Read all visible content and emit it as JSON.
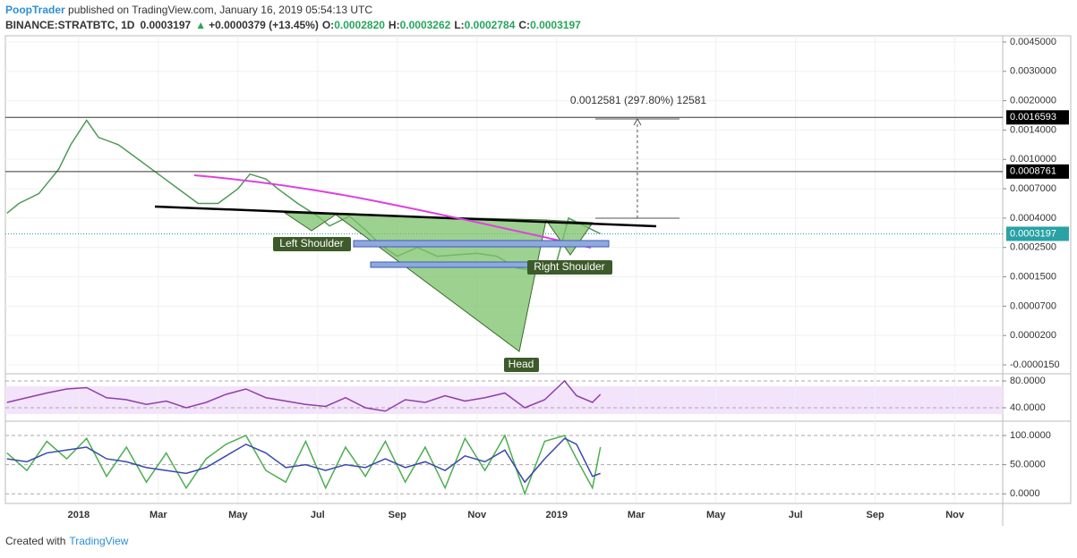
{
  "header": {
    "author": "PoopTrader",
    "published": " published on TradingView.com, January 16, 2019 05:54:13 UTC",
    "symbol": "BINANCE:STRATBTC, 1D",
    "price": "0.0003197",
    "arrow": "▲",
    "change": "+0.0000379 (+13.45%)",
    "o_label": "O:",
    "o": "0.0002820",
    "h_label": "H:",
    "h": "0.0003262",
    "l_label": "L:",
    "l": "0.0002784",
    "c_label": "C:",
    "c": "0.0003197"
  },
  "footer": {
    "created": "Created with",
    "brand": "TradingView"
  },
  "annotations": {
    "left_shoulder": "Left Shoulder",
    "head": "Head",
    "right_shoulder": "Right Shoulder",
    "measure": "0.0012581 (297.80%) 12581"
  },
  "chart_data": [
    {
      "type": "line",
      "name": "price",
      "xlim": [
        -1.84,
        23.2
      ],
      "xticks": [
        {
          "value": 0,
          "label": "2018"
        },
        {
          "value": 2,
          "label": "Mar"
        },
        {
          "value": 4,
          "label": "May"
        },
        {
          "value": 6,
          "label": "Jul"
        },
        {
          "value": 8,
          "label": "Sep"
        },
        {
          "value": 10,
          "label": "Nov"
        },
        {
          "value": 12,
          "label": "2019"
        },
        {
          "value": 14,
          "label": "Mar"
        },
        {
          "value": 16,
          "label": "May"
        },
        {
          "value": 18,
          "label": "Jul"
        },
        {
          "value": 20,
          "label": "Sep"
        },
        {
          "value": 22,
          "label": "Nov"
        }
      ],
      "yticks": [
        {
          "value": 0.0045,
          "label": "0.0045000"
        },
        {
          "value": 0.003,
          "label": "0.0030000"
        },
        {
          "value": 0.002,
          "label": "0.0020000"
        },
        {
          "value": 0.0014,
          "label": "0.0014000"
        },
        {
          "value": 0.001,
          "label": "0.0010000"
        },
        {
          "value": 0.0007,
          "label": "0.0007000"
        },
        {
          "value": 0.0004,
          "label": "0.0004000"
        },
        {
          "value": 0.00025,
          "label": "0.0002500"
        },
        {
          "value": 0.00015,
          "label": "0.0001500"
        },
        {
          "value": 7e-05,
          "label": "0.0000700"
        },
        {
          "value": 2e-05,
          "label": "0.0000200"
        },
        {
          "value": -1.5e-05,
          "label": "-0.0000150"
        }
      ],
      "levels": [
        0.0016593,
        0.0008761
      ],
      "last_price": 0.0003197,
      "x": [
        -1.8,
        -1.5,
        -1.0,
        -0.5,
        -0.2,
        0.2,
        0.5,
        1.0,
        1.5,
        2.0,
        2.5,
        3.0,
        3.5,
        4.0,
        4.3,
        4.7,
        5.0,
        5.5,
        6.0,
        6.3,
        6.8,
        7.2,
        7.6,
        8.0,
        8.5,
        9.0,
        10.0,
        10.5,
        11.0,
        11.5,
        12.0,
        12.3,
        12.7,
        13.1
      ],
      "series": [
        {
          "color": "#4e9a57",
          "values": [
            0.00045,
            0.00055,
            0.00065,
            0.0009,
            0.0012,
            0.0016,
            0.0013,
            0.0012,
            0.001,
            0.00085,
            0.0007,
            0.00055,
            0.00055,
            0.0007,
            0.00085,
            0.0008,
            0.0007,
            0.00055,
            0.00042,
            0.00036,
            0.00042,
            0.00034,
            0.00026,
            0.00022,
            0.00025,
            0.00022,
            0.00023,
            0.00022,
            0.00018,
            0.00017,
            0.0002,
            0.0004,
            0.00036,
            0.00032
          ]
        }
      ]
    },
    {
      "type": "line",
      "name": "rsi",
      "ylim": [
        21.3,
        88
      ],
      "yticks": [
        {
          "value": 80,
          "label": "80.0000"
        },
        {
          "value": 40,
          "label": "40.0000"
        }
      ],
      "x": [
        -1.8,
        -1.3,
        -0.8,
        -0.3,
        0.2,
        0.7,
        1.2,
        1.7,
        2.2,
        2.7,
        3.2,
        3.7,
        4.2,
        4.7,
        5.2,
        5.7,
        6.2,
        6.7,
        7.2,
        7.7,
        8.2,
        8.7,
        9.2,
        9.7,
        10.2,
        10.7,
        11.2,
        11.7,
        12.2,
        12.5,
        12.9,
        13.1
      ],
      "series": [
        {
          "color": "#8e3fa8",
          "values": [
            48,
            55,
            62,
            68,
            70,
            55,
            52,
            45,
            50,
            40,
            48,
            60,
            68,
            55,
            50,
            45,
            42,
            55,
            40,
            35,
            52,
            48,
            58,
            50,
            55,
            62,
            40,
            52,
            80,
            58,
            48,
            60
          ]
        }
      ]
    },
    {
      "type": "line",
      "name": "stoch",
      "ylim": [
        -15,
        123
      ],
      "yticks": [
        {
          "value": 100,
          "label": "100.0000"
        },
        {
          "value": 50,
          "label": "50.0000"
        },
        {
          "value": 0,
          "label": "0.0000"
        }
      ],
      "x": [
        -1.8,
        -1.3,
        -0.8,
        -0.3,
        0.2,
        0.7,
        1.2,
        1.7,
        2.2,
        2.7,
        3.2,
        3.7,
        4.2,
        4.7,
        5.2,
        5.7,
        6.2,
        6.7,
        7.2,
        7.7,
        8.2,
        8.7,
        9.2,
        9.7,
        10.2,
        10.7,
        11.2,
        11.7,
        12.2,
        12.5,
        12.9,
        13.1
      ],
      "series": [
        {
          "color": "#4caf50",
          "values": [
            70,
            40,
            90,
            60,
            95,
            30,
            80,
            20,
            70,
            10,
            60,
            85,
            100,
            40,
            20,
            90,
            10,
            80,
            30,
            90,
            20,
            80,
            10,
            95,
            40,
            100,
            0,
            90,
            100,
            60,
            10,
            80
          ]
        },
        {
          "color": "#3949ab",
          "values": [
            60,
            55,
            70,
            75,
            80,
            60,
            55,
            45,
            40,
            35,
            45,
            65,
            85,
            70,
            45,
            50,
            40,
            50,
            45,
            60,
            45,
            55,
            40,
            65,
            55,
            75,
            20,
            60,
            95,
            85,
            30,
            35
          ]
        }
      ]
    }
  ]
}
